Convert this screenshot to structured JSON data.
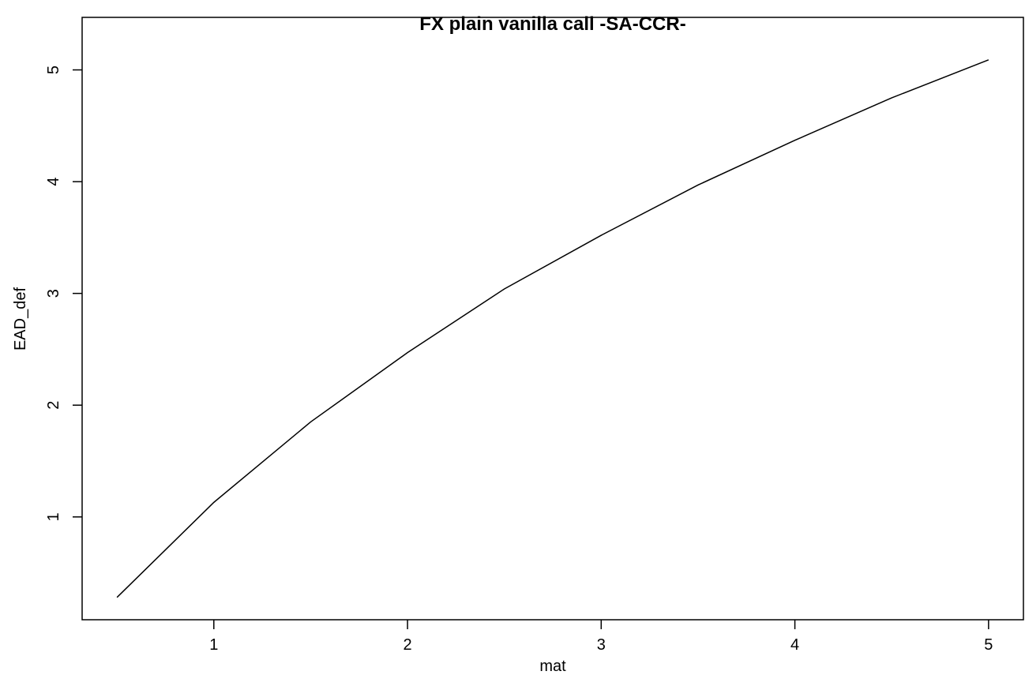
{
  "chart_data": {
    "type": "line",
    "title": "FX plain vanilla call -SA-CCR-",
    "xlabel": "mat",
    "ylabel": "EAD_def",
    "x": [
      0.5,
      1,
      1.5,
      2,
      2.5,
      3,
      3.5,
      4,
      4.5,
      5
    ],
    "series": [
      {
        "name": "EAD_def",
        "color": "#000000",
        "values": [
          0.28,
          1.13,
          1.85,
          2.47,
          3.04,
          3.52,
          3.97,
          4.37,
          4.75,
          5.09
        ]
      }
    ],
    "xlim": [
      0.32,
      5.18
    ],
    "xticks": [
      1,
      2,
      3,
      4,
      5
    ],
    "ylim": [
      0.08,
      5.47
    ],
    "yticks": [
      1,
      2,
      3,
      4,
      5
    ]
  }
}
